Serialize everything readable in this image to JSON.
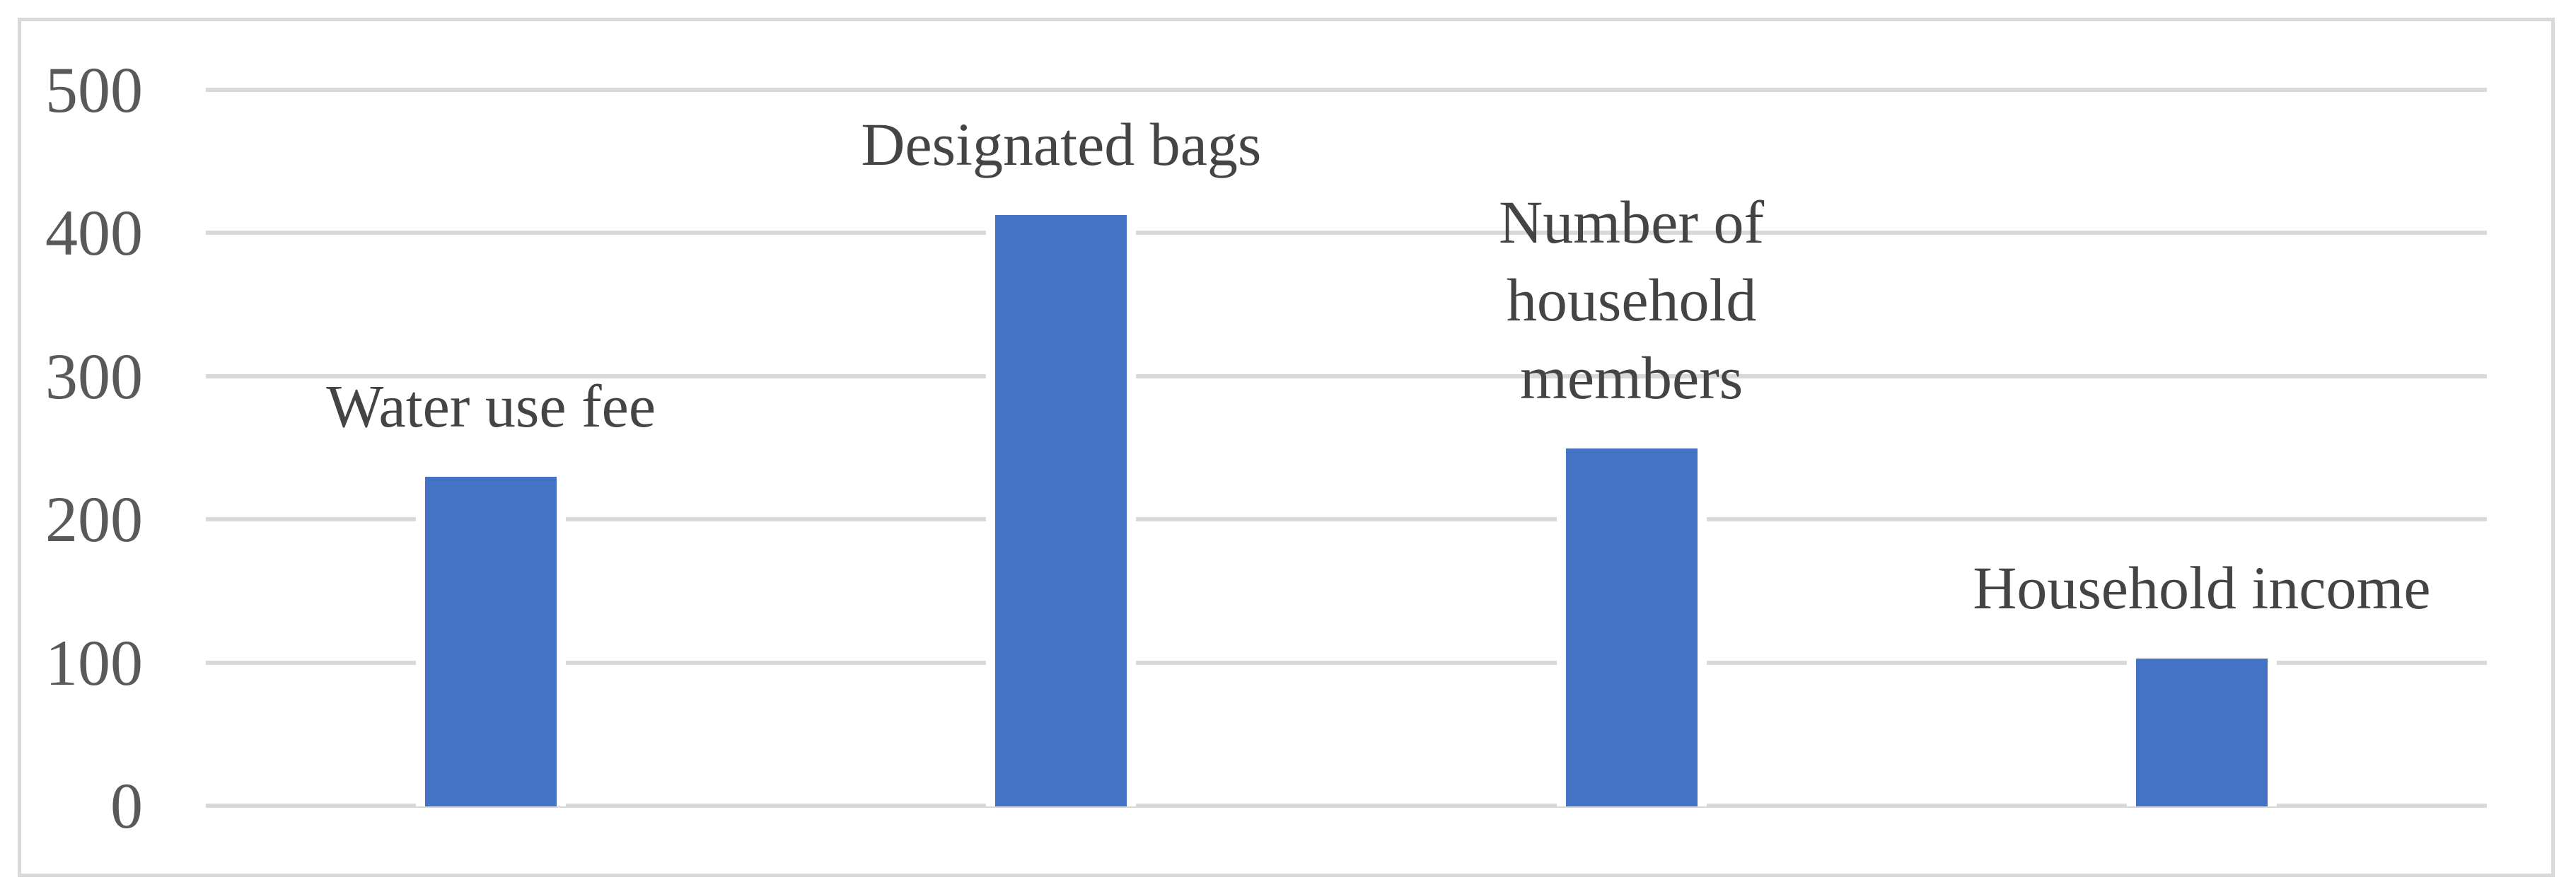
{
  "chart_data": {
    "type": "bar",
    "title": "",
    "xlabel": "",
    "ylabel": "",
    "categories": [
      "Water use fee",
      "Designated bags",
      "Number of household members",
      "Household income"
    ],
    "category_label_lines": [
      [
        "Water use fee"
      ],
      [
        "Designated bags"
      ],
      [
        "Number of",
        "household",
        "members"
      ],
      [
        "Household income"
      ]
    ],
    "values": [
      230,
      413,
      250,
      103
    ],
    "ylim": [
      0,
      500
    ],
    "yticks": [
      0,
      100,
      200,
      300,
      400,
      500
    ],
    "grid": true,
    "legend": false,
    "bar_color": "#4472C4",
    "gridline_color": "#D9D9D9",
    "frame_color": "#D9D9D9",
    "tick_label_color": "#595959",
    "bar_label_color": "#444444",
    "bar_label_position": "above-bars"
  }
}
